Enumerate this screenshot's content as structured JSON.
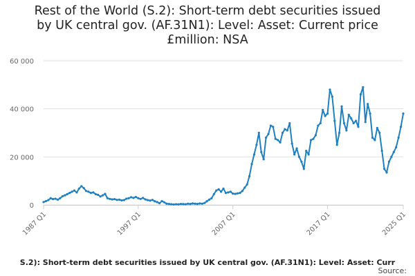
{
  "title_lines": [
    "Rest of the World (S.2): Short-term debt securities issued",
    "by UK central gov. (AF.31N1): Level: Asset: Current price",
    "£million: NSA"
  ],
  "footer": {
    "series_label": "S.2): Short-term debt securities issued by UK central gov. (AF.31N1): Level: Asset: Curr",
    "source_label": "Source:"
  },
  "colors": {
    "line": "#1f80c0",
    "grid": "#e0e0e0",
    "axis": "#cccccc"
  },
  "chart_data": {
    "type": "line",
    "title": "Rest of the World (S.2): Short-term debt securities issued by UK central gov. (AF.31N1): Level: Asset: Current price £million: NSA",
    "xlabel": "",
    "ylabel": "",
    "x_ticks": [
      "1987 Q1",
      "1997 Q1",
      "2007 Q1",
      "2017 Q1",
      "2025 Q1"
    ],
    "y_ticks": [
      0,
      20000,
      40000,
      60000
    ],
    "y_tick_labels": [
      "0",
      "20 000",
      "40 000",
      "60 000"
    ],
    "ylim": [
      0,
      60000
    ],
    "xlim": [
      "1987 Q1",
      "2025 Q1"
    ],
    "grid": true,
    "series": [
      {
        "points": [
          [
            "1987 Q1",
            1200
          ],
          [
            "1987 Q2",
            1600
          ],
          [
            "1987 Q3",
            2000
          ],
          [
            "1987 Q4",
            2800
          ],
          [
            "1988 Q1",
            2400
          ],
          [
            "1988 Q2",
            2600
          ],
          [
            "1988 Q3",
            2200
          ],
          [
            "1988 Q4",
            2800
          ],
          [
            "1989 Q1",
            3600
          ],
          [
            "1989 Q2",
            4000
          ],
          [
            "1989 Q3",
            4500
          ],
          [
            "1989 Q4",
            5000
          ],
          [
            "1990 Q1",
            5500
          ],
          [
            "1990 Q2",
            6000
          ],
          [
            "1990 Q3",
            5200
          ],
          [
            "1990 Q4",
            6800
          ],
          [
            "1991 Q1",
            7800
          ],
          [
            "1991 Q2",
            7000
          ],
          [
            "1991 Q3",
            5800
          ],
          [
            "1991 Q4",
            5500
          ],
          [
            "1992 Q1",
            5000
          ],
          [
            "1992 Q2",
            5200
          ],
          [
            "1992 Q3",
            4500
          ],
          [
            "1992 Q4",
            4200
          ],
          [
            "1993 Q1",
            3500
          ],
          [
            "1993 Q2",
            4000
          ],
          [
            "1993 Q3",
            4600
          ],
          [
            "1993 Q4",
            2800
          ],
          [
            "1994 Q1",
            2500
          ],
          [
            "1994 Q2",
            2300
          ],
          [
            "1994 Q3",
            2400
          ],
          [
            "1994 Q4",
            2100
          ],
          [
            "1995 Q1",
            2200
          ],
          [
            "1995 Q2",
            1900
          ],
          [
            "1995 Q3",
            2000
          ],
          [
            "1995 Q4",
            2600
          ],
          [
            "1996 Q1",
            2800
          ],
          [
            "1996 Q2",
            3200
          ],
          [
            "1996 Q3",
            2900
          ],
          [
            "1996 Q4",
            3300
          ],
          [
            "1997 Q1",
            2800
          ],
          [
            "1997 Q2",
            2500
          ],
          [
            "1997 Q3",
            2900
          ],
          [
            "1997 Q4",
            2300
          ],
          [
            "1998 Q1",
            2000
          ],
          [
            "1998 Q2",
            1800
          ],
          [
            "1998 Q3",
            2100
          ],
          [
            "1998 Q4",
            1500
          ],
          [
            "1999 Q1",
            1200
          ],
          [
            "1999 Q2",
            700
          ],
          [
            "1999 Q3",
            1600
          ],
          [
            "1999 Q4",
            1100
          ],
          [
            "2000 Q1",
            500
          ],
          [
            "2000 Q2",
            400
          ],
          [
            "2000 Q3",
            300
          ],
          [
            "2000 Q4",
            200
          ],
          [
            "2001 Q1",
            300
          ],
          [
            "2001 Q2",
            250
          ],
          [
            "2001 Q3",
            400
          ],
          [
            "2001 Q4",
            350
          ],
          [
            "2002 Q1",
            300
          ],
          [
            "2002 Q2",
            500
          ],
          [
            "2002 Q3",
            400
          ],
          [
            "2002 Q4",
            600
          ],
          [
            "2003 Q1",
            500
          ],
          [
            "2003 Q2",
            400
          ],
          [
            "2003 Q3",
            600
          ],
          [
            "2003 Q4",
            500
          ],
          [
            "2004 Q1",
            800
          ],
          [
            "2004 Q2",
            1500
          ],
          [
            "2004 Q3",
            2200
          ],
          [
            "2004 Q4",
            2800
          ],
          [
            "2005 Q1",
            4500
          ],
          [
            "2005 Q2",
            6000
          ],
          [
            "2005 Q3",
            6500
          ],
          [
            "2005 Q4",
            5500
          ],
          [
            "2006 Q1",
            6800
          ],
          [
            "2006 Q2",
            5000
          ],
          [
            "2006 Q3",
            5200
          ],
          [
            "2006 Q4",
            5500
          ],
          [
            "2007 Q1",
            4700
          ],
          [
            "2007 Q2",
            4600
          ],
          [
            "2007 Q3",
            4800
          ],
          [
            "2007 Q4",
            5000
          ],
          [
            "2008 Q1",
            5800
          ],
          [
            "2008 Q2",
            7200
          ],
          [
            "2008 Q3",
            8500
          ],
          [
            "2008 Q4",
            12000
          ],
          [
            "2009 Q1",
            17000
          ],
          [
            "2009 Q2",
            21000
          ],
          [
            "2009 Q3",
            25000
          ],
          [
            "2009 Q4",
            30000
          ],
          [
            "2010 Q1",
            22000
          ],
          [
            "2010 Q2",
            19000
          ],
          [
            "2010 Q3",
            28000
          ],
          [
            "2010 Q4",
            29500
          ],
          [
            "2011 Q1",
            33000
          ],
          [
            "2011 Q2",
            32500
          ],
          [
            "2011 Q3",
            27500
          ],
          [
            "2011 Q4",
            27000
          ],
          [
            "2012 Q1",
            26000
          ],
          [
            "2012 Q2",
            30000
          ],
          [
            "2012 Q3",
            31500
          ],
          [
            "2012 Q4",
            31000
          ],
          [
            "2013 Q1",
            34000
          ],
          [
            "2013 Q2",
            25500
          ],
          [
            "2013 Q3",
            21000
          ],
          [
            "2013 Q4",
            23500
          ],
          [
            "2014 Q1",
            20000
          ],
          [
            "2014 Q2",
            18000
          ],
          [
            "2014 Q3",
            15000
          ],
          [
            "2014 Q4",
            22500
          ],
          [
            "2015 Q1",
            21000
          ],
          [
            "2015 Q2",
            27000
          ],
          [
            "2015 Q3",
            27500
          ],
          [
            "2015 Q4",
            29000
          ],
          [
            "2016 Q1",
            33000
          ],
          [
            "2016 Q2",
            34000
          ],
          [
            "2016 Q3",
            39500
          ],
          [
            "2016 Q4",
            37000
          ],
          [
            "2017 Q1",
            38000
          ],
          [
            "2017 Q2",
            48000
          ],
          [
            "2017 Q3",
            45000
          ],
          [
            "2017 Q4",
            35000
          ],
          [
            "2018 Q1",
            25000
          ],
          [
            "2018 Q2",
            30000
          ],
          [
            "2018 Q3",
            41000
          ],
          [
            "2018 Q4",
            34000
          ],
          [
            "2019 Q1",
            31000
          ],
          [
            "2019 Q2",
            37500
          ],
          [
            "2019 Q3",
            36000
          ],
          [
            "2019 Q4",
            34000
          ],
          [
            "2020 Q1",
            35000
          ],
          [
            "2020 Q2",
            32500
          ],
          [
            "2020 Q3",
            46000
          ],
          [
            "2020 Q4",
            49000
          ],
          [
            "2021 Q1",
            34500
          ],
          [
            "2021 Q2",
            42000
          ],
          [
            "2021 Q3",
            38000
          ],
          [
            "2021 Q4",
            28000
          ],
          [
            "2022 Q1",
            27000
          ],
          [
            "2022 Q2",
            32000
          ],
          [
            "2022 Q3",
            30000
          ],
          [
            "2022 Q4",
            22500
          ],
          [
            "2023 Q1",
            15000
          ],
          [
            "2023 Q2",
            13500
          ],
          [
            "2023 Q3",
            18000
          ],
          [
            "2023 Q4",
            20000
          ],
          [
            "2024 Q1",
            22000
          ],
          [
            "2024 Q2",
            24000
          ],
          [
            "2024 Q3",
            28000
          ],
          [
            "2024 Q4",
            32500
          ],
          [
            "2025 Q1",
            38000
          ]
        ]
      }
    ]
  }
}
